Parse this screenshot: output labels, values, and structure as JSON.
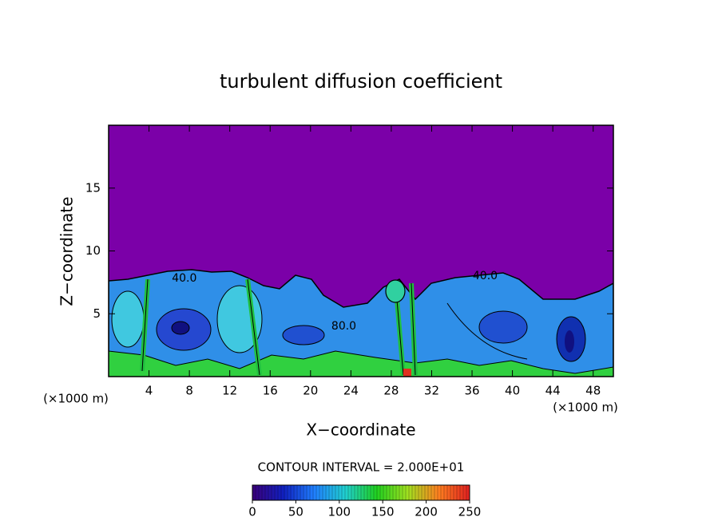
{
  "chart_data": {
    "type": "contour",
    "title": "turbulent diffusion coefficient",
    "x_label": "X−coordinate",
    "y_label": "Z−coordinate",
    "x_unit_label": "(×1000 m)",
    "xlim": [
      0,
      50
    ],
    "xticks": [
      4,
      8,
      12,
      16,
      20,
      24,
      28,
      32,
      36,
      40,
      44,
      48
    ],
    "ylim": [
      0,
      20
    ],
    "yticks": [
      5,
      10,
      15
    ],
    "background_color": "#7b00a8",
    "annotations": [
      {
        "text": "40.0",
        "x": 7.5,
        "y": 7.8
      },
      {
        "text": "80.0",
        "x": 23.3,
        "y": 4.0
      },
      {
        "text": "40.0",
        "x": 37.3,
        "y": 8.0
      }
    ],
    "contour_interval_label": "CONTOUR INTERVAL = 2.000E+01",
    "colorbar": {
      "lim": [
        0,
        250
      ],
      "ticks": [
        0,
        50,
        100,
        150,
        200,
        250
      ],
      "colormap": [
        "#3a007a",
        "#1020c0",
        "#2080ff",
        "#20d0d0",
        "#20d020",
        "#a0e020",
        "#ff8020",
        "#e02020"
      ]
    }
  }
}
